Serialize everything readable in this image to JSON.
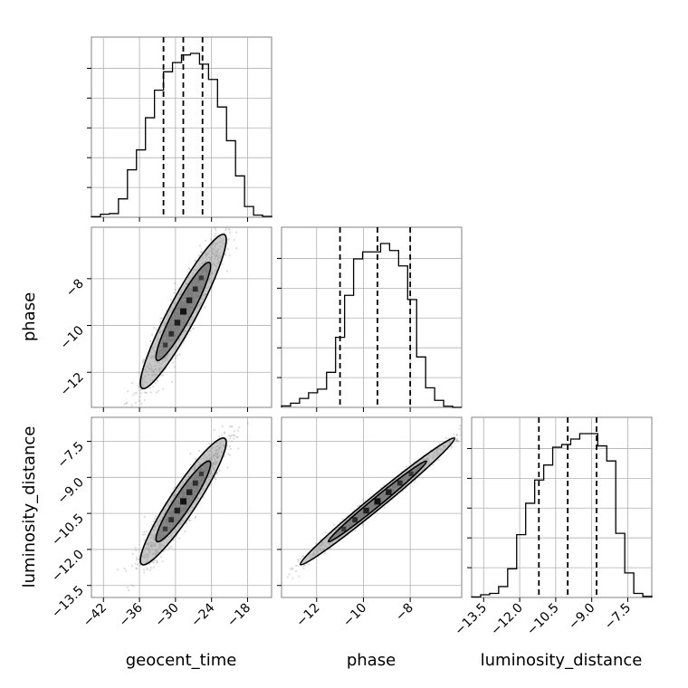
{
  "chart_data": {
    "type": "corner",
    "parameters": [
      "geocent_time",
      "phase",
      "luminosity_distance"
    ],
    "ranges": {
      "geocent_time": [
        -44,
        -14
      ],
      "phase": [
        -13.5,
        -5.8
      ],
      "luminosity_distance": [
        -14.0,
        -6.5
      ]
    },
    "ticks": {
      "geocent_time": [
        -42,
        -36,
        -30,
        -24,
        -18
      ],
      "phase": [
        -12,
        -10,
        -8
      ],
      "luminosity_distance": [
        -13.5,
        -12.0,
        -10.5,
        -9.0,
        -7.5
      ]
    },
    "tick_labels": {
      "geocent_time": [
        "−42",
        "−36",
        "−30",
        "−24",
        "−18"
      ],
      "phase": [
        "−12",
        "−10",
        "−8"
      ],
      "luminosity_distance": [
        "−13.5",
        "−12.0",
        "−10.5",
        "−9.0",
        "−7.5"
      ]
    },
    "quantiles": {
      "geocent_time": [
        -32.0,
        -28.7,
        -25.5
      ],
      "phase": [
        -11.0,
        -9.4,
        -8.0
      ],
      "luminosity_distance": [
        -11.2,
        -10.0,
        -8.8
      ]
    },
    "histograms": {
      "geocent_time": [
        0.2,
        1.0,
        1.2,
        6.0,
        15.5,
        22.0,
        32.5,
        41.5,
        47.5,
        50.5,
        53.0,
        53.5,
        50.0,
        45.0,
        36.0,
        25.0,
        13.5,
        3.5,
        0.7,
        0.3
      ],
      "phase": [
        0.5,
        1.5,
        3.2,
        5.2,
        6.5,
        12.5,
        25.0,
        40.0,
        53.0,
        55.5,
        55.5,
        58.5,
        56.0,
        50.5,
        38.5,
        18.0,
        7.0,
        2.5,
        0.4,
        0.0
      ],
      "luminosity_distance": [
        0.2,
        1.0,
        1.5,
        4.0,
        10.5,
        23.0,
        34.5,
        43.0,
        48.5,
        55.0,
        56.0,
        58.0,
        60.0,
        60.0,
        55.5,
        50.0,
        23.5,
        9.0,
        1.5,
        0.4
      ]
    },
    "correlations": {
      "phase_vs_geocent_time": 0.93,
      "luminosity_distance_vs_geocent_time": 0.93,
      "luminosity_distance_vs_phase": 0.99
    },
    "grid": true,
    "style": {
      "line_color": "#000000",
      "scatter_color": "#9a9a9a",
      "grid_color": "#b0b0b0",
      "fill_colors": [
        "#5a5a5a",
        "#9d9d9d",
        "#000000"
      ]
    }
  }
}
